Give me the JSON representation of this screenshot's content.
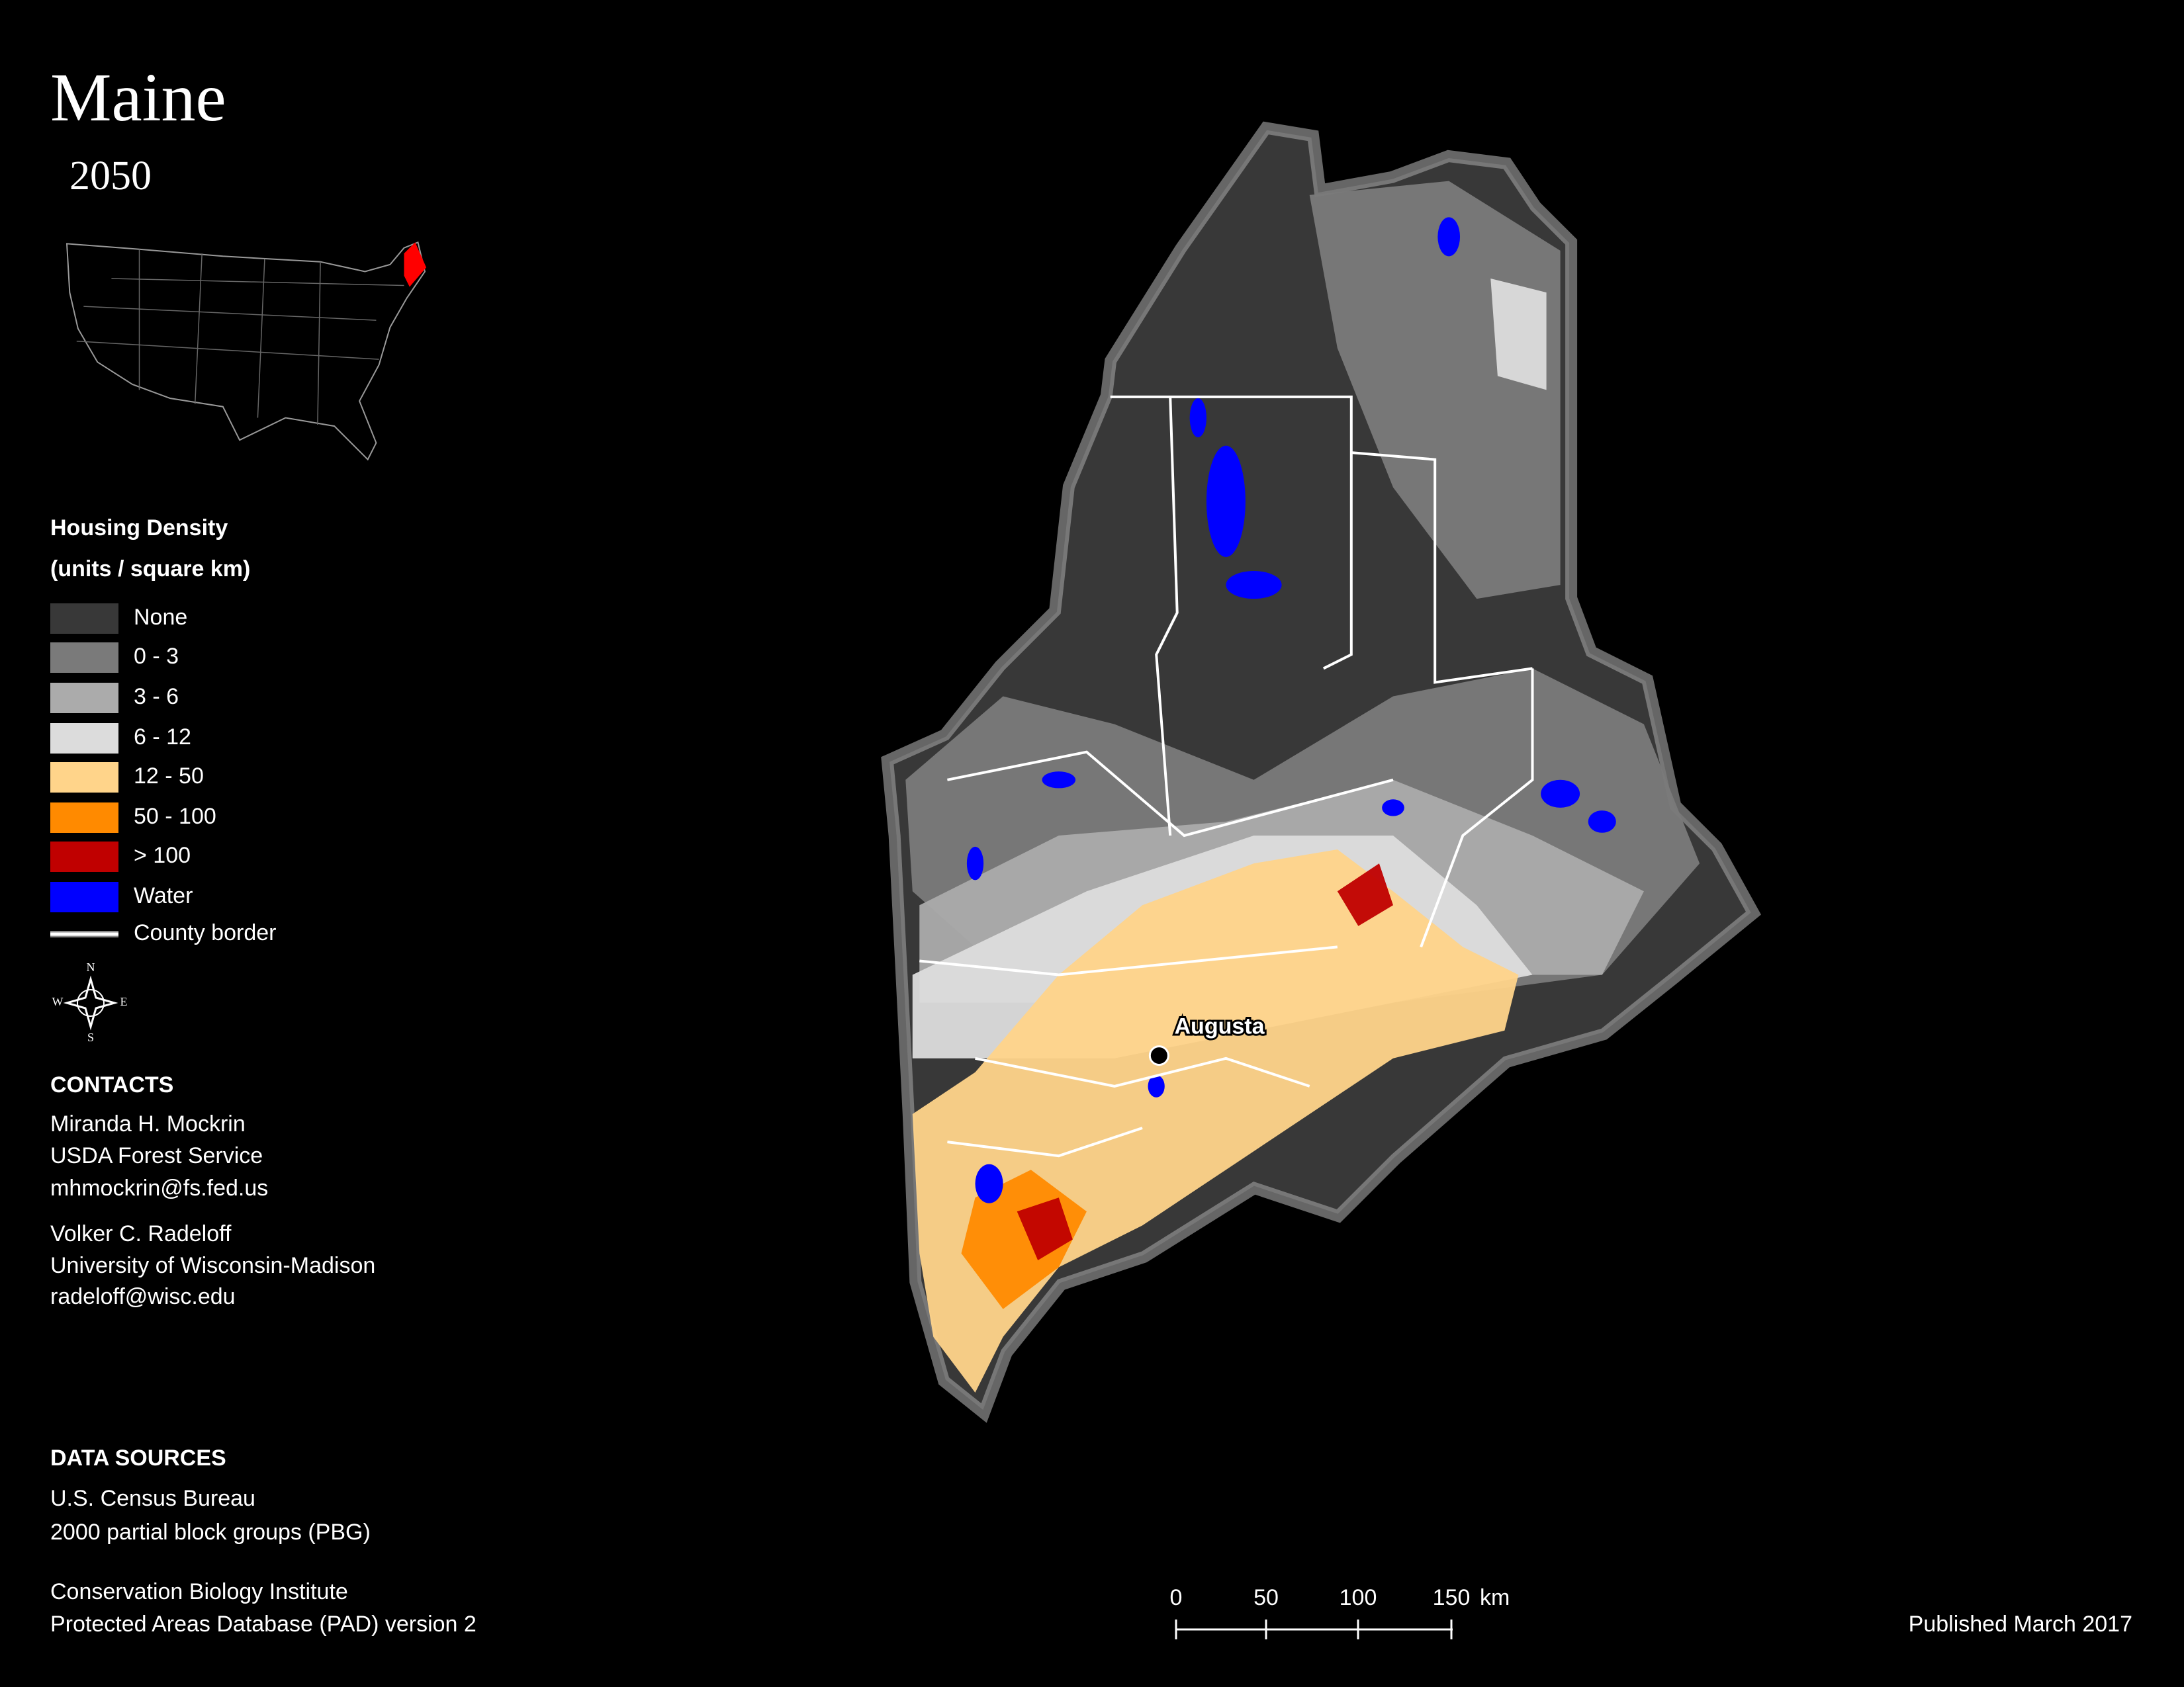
{
  "title": "Maine",
  "subtitle": "2050",
  "legend": {
    "title": "Housing Density",
    "units": "(units / square km)",
    "items": [
      {
        "label": "None",
        "color": "#383838",
        "shape": "box"
      },
      {
        "label": "0 - 3",
        "color": "#7a7a7a",
        "shape": "box"
      },
      {
        "label": "3 - 6",
        "color": "#ababab",
        "shape": "box"
      },
      {
        "label": "6 - 12",
        "color": "#dcdcdc",
        "shape": "box"
      },
      {
        "label": "12 - 50",
        "color": "#ffd48a",
        "shape": "box"
      },
      {
        "label": "50 - 100",
        "color": "#ff8a00",
        "shape": "box"
      },
      {
        "label": "> 100",
        "color": "#c00000",
        "shape": "box"
      },
      {
        "label": "Water",
        "color": "#0000ff",
        "shape": "box"
      },
      {
        "label": "County border",
        "color": "#ffffff",
        "shape": "line"
      }
    ]
  },
  "compass": [
    "N",
    "E",
    "S",
    "W"
  ],
  "city": "Augusta",
  "contacts": {
    "heading": "CONTACTS",
    "people": [
      [
        "Miranda H. Mockrin",
        "USDA Forest Service",
        "mhmockrin@fs.fed.us"
      ],
      [
        "Volker C. Radeloff",
        "University of Wisconsin-Madison",
        "radeloff@wisc.edu"
      ]
    ]
  },
  "data_sources": {
    "heading": "DATA SOURCES",
    "sources": [
      [
        "U.S. Census Bureau",
        "2000 partial block groups (PBG)"
      ],
      [
        "Conservation Biology Institute",
        "Protected Areas Database (PAD) version 2"
      ]
    ]
  },
  "scale_bar": {
    "labels": [
      "0",
      "50",
      "100",
      "150"
    ],
    "unit": "km"
  },
  "published": "Published March 2017"
}
